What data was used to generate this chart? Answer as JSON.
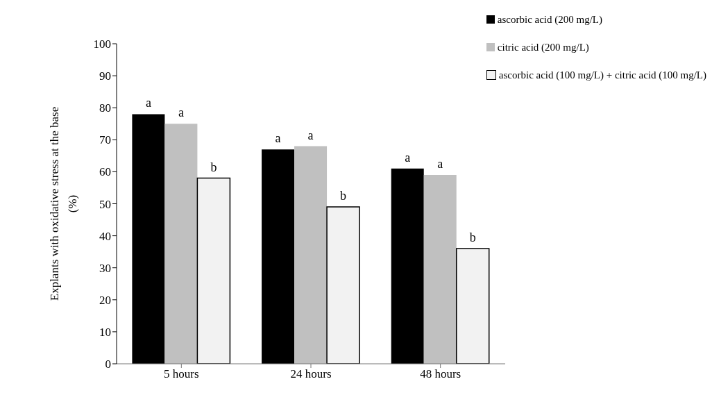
{
  "chart_data": {
    "type": "bar",
    "categories": [
      "5 hours",
      "24 hours",
      "48 hours"
    ],
    "ylabel": "Explants with oxidative  stress at the base\n(%)",
    "ylim": [
      0,
      100
    ],
    "yticks": [
      0,
      10,
      20,
      30,
      40,
      50,
      60,
      70,
      80,
      90,
      100
    ],
    "grid": false,
    "legend": "top right",
    "series": [
      {
        "name": "ascorbic acid (200 mg/L)",
        "color": "#000000",
        "values": [
          78,
          67,
          61
        ],
        "value_labels": [
          "a",
          "a",
          "a"
        ]
      },
      {
        "name": "citric acid (200 mg/L)",
        "color": "#c0c0c0",
        "values": [
          75,
          68,
          59
        ],
        "value_labels": [
          "a",
          "a",
          "a"
        ]
      },
      {
        "name": "ascorbic acid (100 mg/L) + citric acid (100 mg/L)",
        "color": "#f2f2f2",
        "values": [
          58,
          49,
          36
        ],
        "value_labels": [
          "b",
          "b",
          "b"
        ]
      }
    ]
  }
}
